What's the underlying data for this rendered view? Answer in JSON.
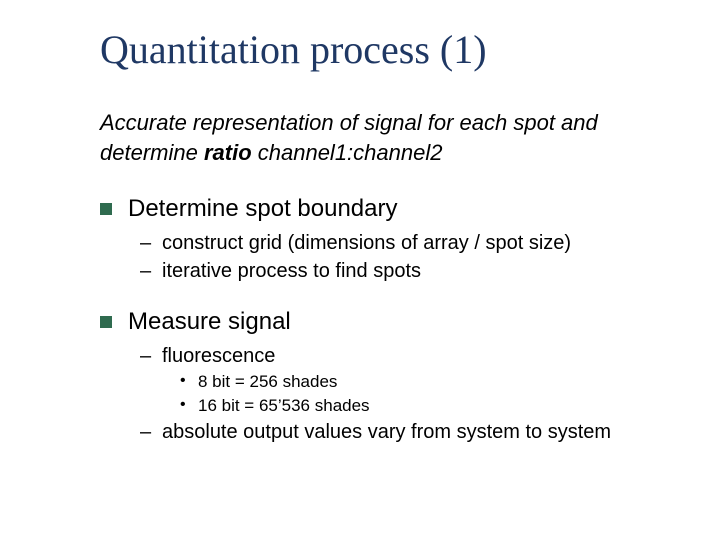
{
  "title": "Quantitation process (1)",
  "subtitle_pre": "Accurate representation of signal for each spot and determine ",
  "subtitle_bold": "ratio",
  "subtitle_post": " channel1:channel2",
  "colors": {
    "title_color": "#1f3864",
    "bullet_color": "#2f6b4f",
    "text_color": "#000000",
    "background": "#ffffff"
  },
  "fonts": {
    "title_family": "Times New Roman",
    "body_family": "Arial",
    "title_size_pt": 40,
    "subtitle_size_pt": 22,
    "level1_size_pt": 24,
    "level2_size_pt": 20,
    "level3_size_pt": 17
  },
  "items": [
    {
      "label": "Determine spot boundary",
      "sub": [
        {
          "label": "construct grid (dimensions of array / spot size)"
        },
        {
          "label": "iterative process to find spots"
        }
      ]
    },
    {
      "label": "Measure signal",
      "sub": [
        {
          "label": "fluorescence",
          "sub": [
            {
              "label": "8 bit = 256 shades"
            },
            {
              "label": "16 bit = 65’536 shades"
            }
          ]
        },
        {
          "label": "absolute output values vary from system to system"
        }
      ]
    }
  ]
}
